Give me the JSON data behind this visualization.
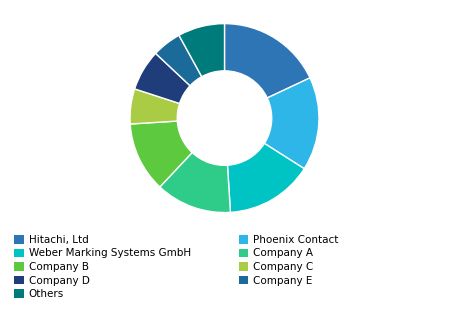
{
  "labels": [
    "Hitachi, Ltd",
    "Phoenix Contact",
    "Weber Marking Systems GmbH",
    "Company A",
    "Company B",
    "Company C",
    "Company D",
    "Company E",
    "Others"
  ],
  "values": [
    18,
    16,
    15,
    13,
    12,
    6,
    7,
    5,
    8
  ],
  "colors": [
    "#2E75B6",
    "#2EB6E8",
    "#00C4C4",
    "#2ECC88",
    "#5DC93E",
    "#AACC44",
    "#1F3D7A",
    "#1A6B9A",
    "#007B7B"
  ],
  "background_color": "#ffffff",
  "legend_fontsize": 7.5,
  "startangle": 90,
  "left_legend_labels": [
    "Hitachi, Ltd",
    "Weber Marking Systems GmbH",
    "Company B",
    "Company D",
    "Others"
  ],
  "left_legend_colors": [
    "#2E75B6",
    "#00C4C4",
    "#5DC93E",
    "#1F3D7A",
    "#007B7B"
  ],
  "right_legend_labels": [
    "Phoenix Contact",
    "Company A",
    "Company C",
    "Company E"
  ],
  "right_legend_colors": [
    "#2EB6E8",
    "#2ECC88",
    "#AACC44",
    "#1A6B9A"
  ]
}
